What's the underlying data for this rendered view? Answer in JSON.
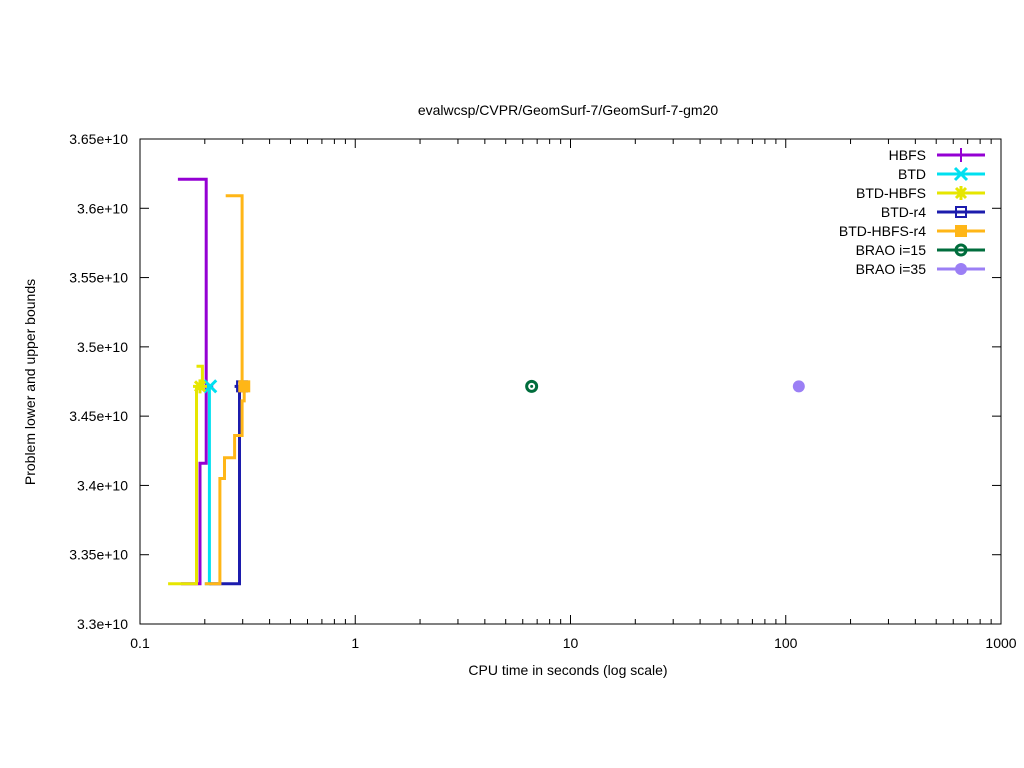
{
  "chart_data": {
    "type": "line",
    "title": "evalwcsp/CVPR/GeomSurf-7/GeomSurf-7-gm20",
    "xlabel": "CPU time in seconds (log scale)",
    "ylabel": "Problem lower and upper bounds",
    "xscale": "log",
    "xlim": [
      0.1,
      1000
    ],
    "ylim": [
      33000000000.0,
      36500000000.0
    ],
    "x_ticks": [
      0.1,
      1,
      10,
      100,
      1000
    ],
    "x_tick_labels": [
      "0.1",
      "1",
      "10",
      "100",
      "1000"
    ],
    "y_ticks": [
      33000000000.0,
      33500000000.0,
      34000000000.0,
      34500000000.0,
      35000000000.0,
      35500000000.0,
      36000000000.0,
      36500000000.0
    ],
    "y_tick_labels": [
      "3.3e+10",
      "3.35e+10",
      "3.4e+10",
      "3.45e+10",
      "3.5e+10",
      "3.55e+10",
      "3.6e+10",
      "3.65e+10"
    ],
    "grid": false,
    "legend_position": "top-right",
    "series": [
      {
        "name": "HBFS",
        "color": "#9400d3",
        "marker": "plus",
        "upper": [
          [
            0.15,
            36210000000.0
          ],
          [
            0.203,
            36210000000.0
          ],
          [
            0.203,
            34715000000.0
          ]
        ],
        "lower": [
          [
            0.155,
            33290000000.0
          ],
          [
            0.19,
            33290000000.0
          ],
          [
            0.19,
            34160000000.0
          ],
          [
            0.203,
            34160000000.0
          ],
          [
            0.203,
            34715000000.0
          ]
        ],
        "final": [
          0.203,
          34715000000.0
        ]
      },
      {
        "name": "BTD",
        "color": "#00e0f0",
        "marker": "cross",
        "upper": [
          [
            0.205,
            34715000000.0
          ],
          [
            0.212,
            34715000000.0
          ]
        ],
        "lower": [
          [
            0.2,
            33290000000.0
          ],
          [
            0.21,
            33290000000.0
          ],
          [
            0.21,
            34715000000.0
          ]
        ],
        "final": [
          0.212,
          34715000000.0
        ]
      },
      {
        "name": "BTD-HBFS",
        "color": "#e6e600",
        "marker": "star",
        "upper": [
          [
            0.183,
            34860000000.0
          ],
          [
            0.195,
            34860000000.0
          ],
          [
            0.195,
            34715000000.0
          ]
        ],
        "lower": [
          [
            0.135,
            33290000000.0
          ],
          [
            0.183,
            33290000000.0
          ],
          [
            0.183,
            34715000000.0
          ]
        ],
        "final": [
          0.19,
          34715000000.0
        ]
      },
      {
        "name": "BTD-r4",
        "color": "#1c1cad",
        "marker": "open-square",
        "upper": [
          [
            0.275,
            34715000000.0
          ],
          [
            0.298,
            34715000000.0
          ]
        ],
        "lower": [
          [
            0.21,
            33290000000.0
          ],
          [
            0.29,
            33290000000.0
          ],
          [
            0.29,
            34715000000.0
          ]
        ],
        "final": [
          0.298,
          34715000000.0
        ]
      },
      {
        "name": "BTD-HBFS-r4",
        "color": "#ffb617",
        "marker": "filled-square",
        "upper": [
          [
            0.25,
            36090000000.0
          ],
          [
            0.298,
            36090000000.0
          ],
          [
            0.298,
            34715000000.0
          ]
        ],
        "lower": [
          [
            0.2,
            33290000000.0
          ],
          [
            0.235,
            33290000000.0
          ],
          [
            0.235,
            34050000000.0
          ],
          [
            0.247,
            34050000000.0
          ],
          [
            0.247,
            34200000000.0
          ],
          [
            0.275,
            34200000000.0
          ],
          [
            0.275,
            34360000000.0
          ],
          [
            0.298,
            34360000000.0
          ],
          [
            0.298,
            34610000000.0
          ],
          [
            0.305,
            34610000000.0
          ],
          [
            0.305,
            34715000000.0
          ]
        ],
        "final": [
          0.305,
          34715000000.0
        ]
      },
      {
        "name": "BRAO i=15",
        "color": "#006d3c",
        "marker": "open-circle",
        "upper": [],
        "lower": [],
        "final": [
          6.6,
          34715000000.0
        ]
      },
      {
        "name": "BRAO i=35",
        "color": "#9b7ff5",
        "marker": "filled-circle",
        "upper": [],
        "lower": [],
        "final": [
          115,
          34715000000.0
        ]
      }
    ]
  }
}
